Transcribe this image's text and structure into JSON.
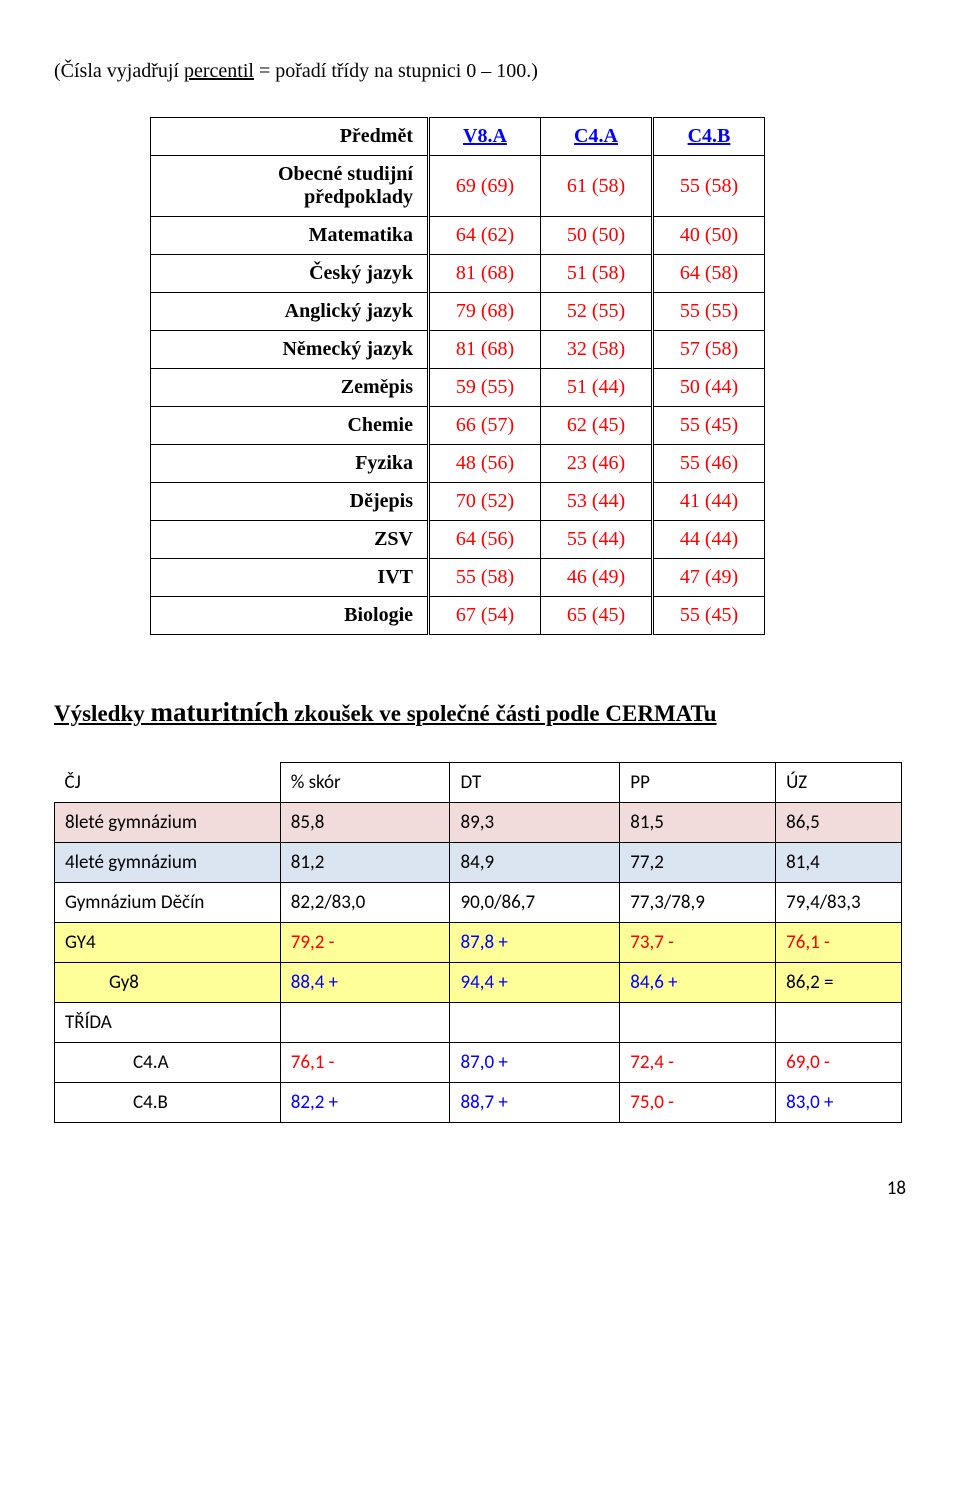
{
  "intro": {
    "pre": "(Čísla vyjadřují ",
    "underlined": "percentil",
    "post": " = pořadí třídy na stupnici 0 – 100.)"
  },
  "table1": {
    "headers": {
      "subject": "Předmět",
      "c1": "V8.A",
      "c2": "C4.A",
      "c3": "C4.B"
    },
    "rows": [
      {
        "subject": "Obecné studijní předpoklady",
        "v1": "69 (69)",
        "v2": "61 (58)",
        "v3": "55 (58)"
      },
      {
        "subject": "Matematika",
        "v1": "64 (62)",
        "v2": "50 (50)",
        "v3": "40 (50)"
      },
      {
        "subject": "Český jazyk",
        "v1": "81 (68)",
        "v2": "51 (58)",
        "v3": "64 (58)"
      },
      {
        "subject": "Anglický jazyk",
        "v1": "79 (68)",
        "v2": "52 (55)",
        "v3": "55 (55)"
      },
      {
        "subject": "Německý jazyk",
        "v1": "81 (68)",
        "v2": "32 (58)",
        "v3": "57 (58)"
      },
      {
        "subject": "Zeměpis",
        "v1": "59 (55)",
        "v2": "51 (44)",
        "v3": "50 (44)"
      },
      {
        "subject": "Chemie",
        "v1": "66 (57)",
        "v2": "62 (45)",
        "v3": "55 (45)"
      },
      {
        "subject": "Fyzika",
        "v1": "48 (56)",
        "v2": "23 (46)",
        "v3": "55 (46)"
      },
      {
        "subject": "Dějepis",
        "v1": "70 (52)",
        "v2": "53 (44)",
        "v3": "41 (44)"
      },
      {
        "subject": "ZSV",
        "v1": "64 (56)",
        "v2": "55 (44)",
        "v3": "44 (44)"
      },
      {
        "subject": "IVT",
        "v1": "55 (58)",
        "v2": "46 (49)",
        "v3": "47 (49)"
      },
      {
        "subject": "Biologie",
        "v1": "67 (54)",
        "v2": "65 (45)",
        "v3": "55 (45)"
      }
    ]
  },
  "section2_heading": {
    "lead": "Výsledky ",
    "big": "maturitních",
    "tail": " zkoušek ve společné části podle CERMATu"
  },
  "table2": {
    "hdr": {
      "c0": "ČJ",
      "c1": "% skór",
      "c2": "DT",
      "c3": "PP",
      "c4": "ÚZ"
    },
    "rows": [
      {
        "cls": "brow pink",
        "c0": "8leté gymnázium",
        "c1": "85,8",
        "c2": "89,3",
        "c3": "81,5",
        "c4": "86,5"
      },
      {
        "cls": "brow blue",
        "c0": "4leté gymnázium",
        "c1": "81,2",
        "c2": "84,9",
        "c3": "77,2",
        "c4": "81,4"
      },
      {
        "cls": "brow",
        "c0": "Gymnázium Děčín",
        "c1": "82,2/83,0",
        "c2": "90,0/86,7",
        "c3": "77,3/78,9",
        "c4": "79,4/83,3"
      },
      {
        "cls": "brow gold",
        "c0": "GY4",
        "c1": "79,2 -",
        "c2": "87,8 +",
        "c3": "73,7 -",
        "c4": "76,1 -",
        "colcolor": {
          "c1": "vred",
          "c2": "vblue",
          "c3": "vred",
          "c4": "vred"
        }
      },
      {
        "cls": "brow gold",
        "indent": 1,
        "c0": "Gy8",
        "c1": "88,4 +",
        "c2": "94,4 +",
        "c3": "84,6 +",
        "c4": "86,2 =",
        "colcolor": {
          "c1": "vblue",
          "c2": "vblue",
          "c3": "vblue",
          "c4": "vblack"
        }
      },
      {
        "cls": "brow",
        "c0": "TŘÍDA",
        "c1": "",
        "c2": "",
        "c3": "",
        "c4": ""
      },
      {
        "cls": "brow",
        "indent": 2,
        "c0": "C4.A",
        "c1": "76,1 -",
        "c2": "87,0 +",
        "c3": "72,4 -",
        "c4": "69,0 -",
        "colcolor": {
          "c1": "vred",
          "c2": "vblue",
          "c3": "vred",
          "c4": "vred"
        }
      },
      {
        "cls": "brow",
        "indent": 2,
        "c0": "C4.B",
        "c1": "82,2 +",
        "c2": "88,7 +",
        "c3": "75,0 -",
        "c4": "83,0 +",
        "colcolor": {
          "c1": "vblue",
          "c2": "vblue",
          "c3": "vred",
          "c4": "vblue"
        }
      }
    ]
  },
  "page_number": "18"
}
